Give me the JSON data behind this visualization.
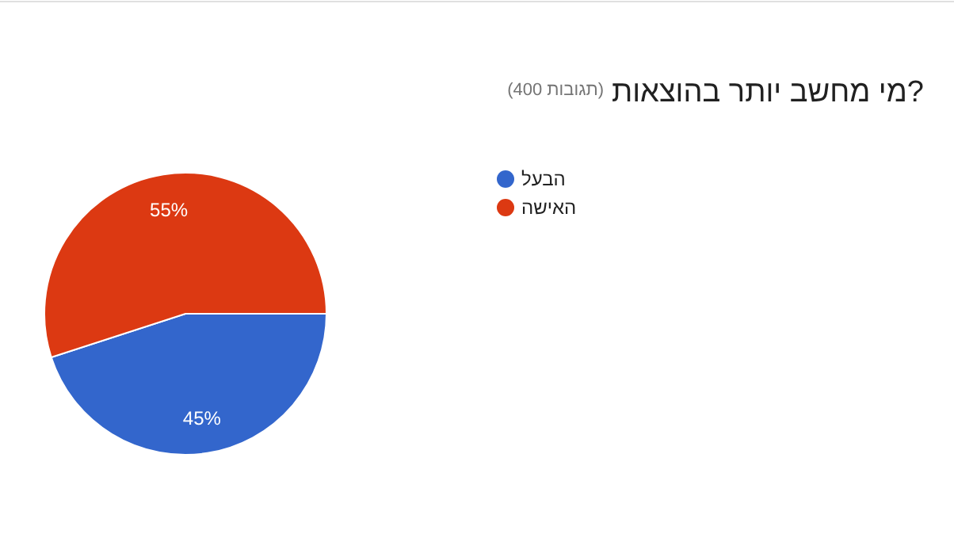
{
  "chart_data": {
    "type": "pie",
    "title": "מי מחשב יותר בהוצאות?",
    "subtitle": "(400 תגובות)",
    "categories": [
      "הבעל",
      "האישה"
    ],
    "values": [
      45,
      55
    ],
    "value_labels": [
      "45%",
      "55%"
    ],
    "colors": [
      "#3366cc",
      "#dc3912"
    ],
    "legend": "right"
  }
}
